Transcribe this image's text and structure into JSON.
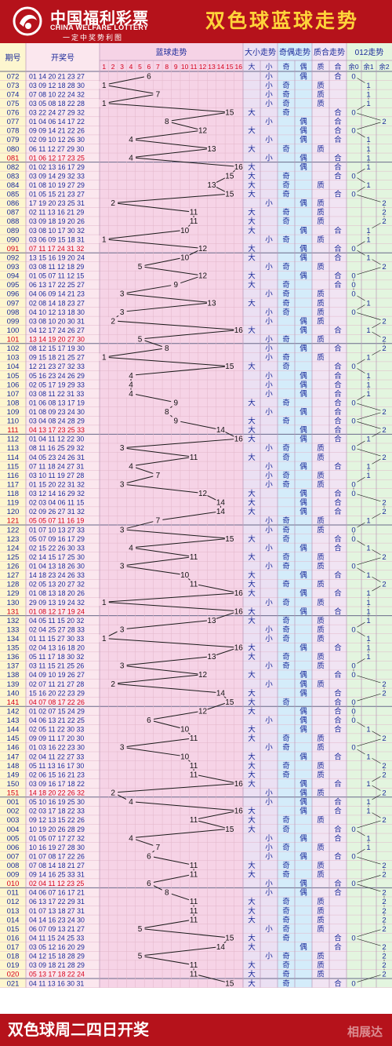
{
  "header": {
    "logo_cn": "中国福利彩票",
    "logo_en": "CHINA WELFARE LOTTERY",
    "logo_sub": "一定中奖势利图",
    "title": "双色球蓝球走势"
  },
  "footer": {
    "text": "双色球周二四日开奖",
    "watermark": "相展达"
  },
  "columns": {
    "period": "期号",
    "numbers": "开奖号",
    "blue_trend": "蓝球走势",
    "big_small": "大小走势",
    "odd_even": "奇偶走势",
    "prime_comp": "质合走势",
    "mod3": "012走势",
    "big": "大",
    "small": "小",
    "odd": "奇",
    "even": "偶",
    "prime": "质",
    "composite": "合",
    "r0": "余0",
    "r1": "余1",
    "r2": "余2"
  },
  "colors": {
    "brand_red": "#b5121b",
    "title_yellow": "#ffd43a",
    "period_bg": "#fdf6cf",
    "numbers_bg": "#fbe7ee",
    "trend_bg": "#f6d3e6",
    "bigsmall_bg": "#ebe0f3",
    "oddeven_bg": "#d4ecfa",
    "primecomp_bg": "#f1e4f3",
    "mod3_bg": "#e3f5df",
    "grid": "#e2b6c9",
    "text_blue": "#1b2a9a",
    "red_row": "#d5001b",
    "green_text": "#2b8a2b"
  },
  "chart_data": {
    "type": "table",
    "blue_range": [
      1,
      16
    ],
    "blue_ticks": [
      "1",
      "2",
      "3",
      "4",
      "5",
      "6",
      "7",
      "8",
      "9",
      "10",
      "11",
      "12",
      "13",
      "14",
      "15",
      "16"
    ],
    "rows": [
      {
        "p": "072",
        "n": "01 14 20 21 23 27",
        "b": 6
      },
      {
        "p": "073",
        "n": "03 09 12 18 28 30",
        "b": 1
      },
      {
        "p": "074",
        "n": "07 08 10 22 24 32",
        "b": 7
      },
      {
        "p": "075",
        "n": "03 05 08 18 22 28",
        "b": 1
      },
      {
        "p": "076",
        "n": "03 22 24 27 29 32",
        "b": 15
      },
      {
        "p": "077",
        "n": "01 04 06 14 17 22",
        "b": 8
      },
      {
        "p": "078",
        "n": "09 09 14 21 22 26",
        "b": 12
      },
      {
        "p": "079",
        "n": "02 09 10 12 26 30",
        "b": 4
      },
      {
        "p": "080",
        "n": "06 11 12 27 29 30",
        "b": 13
      },
      {
        "p": "081",
        "n": "01 06 12 17 23 25",
        "b": 4
      },
      {
        "p": "082",
        "n": "01 02 13 16 17 29",
        "b": 16
      },
      {
        "p": "083",
        "n": "03 09 14 29 32 33",
        "b": 15
      },
      {
        "p": "084",
        "n": "01 08 10 19 27 29",
        "b": 13
      },
      {
        "p": "085",
        "n": "01 05 15 21 23 27",
        "b": 15
      },
      {
        "p": "086",
        "n": "17 19 20 23 25 31",
        "b": 2
      },
      {
        "p": "087",
        "n": "02 11 13 16 21 29",
        "b": 11
      },
      {
        "p": "088",
        "n": "03 09 18 19 20 26",
        "b": 11
      },
      {
        "p": "089",
        "n": "03 08 10 17 30 32",
        "b": 10
      },
      {
        "p": "090",
        "n": "03 06 09 15 18 31",
        "b": 1
      },
      {
        "p": "091",
        "n": "07 11 17 24 31 32",
        "b": 12
      },
      {
        "p": "092",
        "n": "13 15 16 19 20 24",
        "b": 10
      },
      {
        "p": "093",
        "n": "03 08 11 12 18 29",
        "b": 5
      },
      {
        "p": "094",
        "n": "01 05 07 11 12 15",
        "b": 12
      },
      {
        "p": "095",
        "n": "06 13 17 22 25 27",
        "b": 9
      },
      {
        "p": "096",
        "n": "04 06 09 14 21 23",
        "b": 3
      },
      {
        "p": "097",
        "n": "02 08 14 18 23 27",
        "b": 13
      },
      {
        "p": "098",
        "n": "04 10 12 13 18 30",
        "b": 3
      },
      {
        "p": "099",
        "n": "03 08 10 20 30 31",
        "b": 2
      },
      {
        "p": "100",
        "n": "04 12 17 24 26 27",
        "b": 16
      },
      {
        "p": "101",
        "n": "13 14 19 20 27 30",
        "b": 5
      },
      {
        "p": "102",
        "n": "08 12 15 17 19 30",
        "b": 8
      },
      {
        "p": "103",
        "n": "09 15 18 21 25 27",
        "b": 1
      },
      {
        "p": "104",
        "n": "12 21 23 27 32 33",
        "b": 15
      },
      {
        "p": "105",
        "n": "05 16 23 24 26 29",
        "b": 4
      },
      {
        "p": "106",
        "n": "02 05 17 19 29 33",
        "b": 4
      },
      {
        "p": "107",
        "n": "03 08 11 22 31 33",
        "b": 4
      },
      {
        "p": "108",
        "n": "01 06 08 13 17 19",
        "b": 9
      },
      {
        "p": "109",
        "n": "01 08 09 23 24 30",
        "b": 8
      },
      {
        "p": "110",
        "n": "03 04 08 24 28 29",
        "b": 9
      },
      {
        "p": "111",
        "n": "04 13 17 23 25 33",
        "b": 14
      },
      {
        "p": "112",
        "n": "01 04 11 12 22 30",
        "b": 16
      },
      {
        "p": "113",
        "n": "08 11 16 25 29 32",
        "b": 3
      },
      {
        "p": "114",
        "n": "04 05 23 24 26 31",
        "b": 11
      },
      {
        "p": "115",
        "n": "07 11 18 24 27 31",
        "b": 4
      },
      {
        "p": "116",
        "n": "03 10 11 19 27 28",
        "b": 7
      },
      {
        "p": "117",
        "n": "01 15 20 22 31 32",
        "b": 3
      },
      {
        "p": "118",
        "n": "03 12 14 16 29 32",
        "b": 12
      },
      {
        "p": "119",
        "n": "02 03 04 06 11 15",
        "b": 14
      },
      {
        "p": "120",
        "n": "02 09 26 27 31 32",
        "b": 14
      },
      {
        "p": "121",
        "n": "05 05 07 11 16 19",
        "b": 7
      },
      {
        "p": "122",
        "n": "01 07 10 13 27 33",
        "b": 3
      },
      {
        "p": "123",
        "n": "05 07 09 16 17 29",
        "b": 15
      },
      {
        "p": "124",
        "n": "02 15 22 26 30 33",
        "b": 4
      },
      {
        "p": "125",
        "n": "02 14 15 17 25 30",
        "b": 11
      },
      {
        "p": "126",
        "n": "01 04 13 18 26 30",
        "b": 3
      },
      {
        "p": "127",
        "n": "14 18 23 24 26 33",
        "b": 10
      },
      {
        "p": "128",
        "n": "02 05 13 20 27 32",
        "b": 11
      },
      {
        "p": "129",
        "n": "01 08 13 18 20 26",
        "b": 16
      },
      {
        "p": "130",
        "n": "29 09 13 19 24 32",
        "b": 1
      },
      {
        "p": "131",
        "n": "01 08 12 17 19 24",
        "b": 16
      },
      {
        "p": "132",
        "n": "04 05 11 15 20 32",
        "b": 13
      },
      {
        "p": "133",
        "n": "02 04 25 27 28 33",
        "b": 3
      },
      {
        "p": "134",
        "n": "01 11 15 27 30 33",
        "b": 1
      },
      {
        "p": "135",
        "n": "02 04 13 16 18 20",
        "b": 16
      },
      {
        "p": "136",
        "n": "05 11 17 18 30 32",
        "b": 13
      },
      {
        "p": "137",
        "n": "03 11 15 21 25 26",
        "b": 3
      },
      {
        "p": "138",
        "n": "04 09 10 19 26 27",
        "b": 12
      },
      {
        "p": "139",
        "n": "02 07 11 21 27 28",
        "b": 2
      },
      {
        "p": "140",
        "n": "15 16 20 22 23 29",
        "b": 14
      },
      {
        "p": "141",
        "n": "04 07 08 17 22 26",
        "b": 15
      },
      {
        "p": "142",
        "n": "01 02 07 15 24 29",
        "b": 12
      },
      {
        "p": "143",
        "n": "04 06 13 21 22 25",
        "b": 6
      },
      {
        "p": "144",
        "n": "02 05 11 22 30 33",
        "b": 10
      },
      {
        "p": "145",
        "n": "09 09 11 17 20 30",
        "b": 11
      },
      {
        "p": "146",
        "n": "01 03 16 22 23 30",
        "b": 3
      },
      {
        "p": "147",
        "n": "02 04 11 22 27 33",
        "b": 10
      },
      {
        "p": "148",
        "n": "05 11 13 16 17 30",
        "b": 11
      },
      {
        "p": "149",
        "n": "02 06 15 16 21 23",
        "b": 11
      },
      {
        "p": "150",
        "n": "03 09 16 17 18 22",
        "b": 16
      },
      {
        "p": "151",
        "n": "14 18 20 22 26 32",
        "b": 2
      },
      {
        "p": "001",
        "n": "05 10 16 19 25 30",
        "b": 4
      },
      {
        "p": "002",
        "n": "02 03 17 18 22 33",
        "b": 16
      },
      {
        "p": "003",
        "n": "09 12 13 15 22 26",
        "b": 11
      },
      {
        "p": "004",
        "n": "10 19 20 26 28 29",
        "b": 15
      },
      {
        "p": "005",
        "n": "01 05 07 17 27 32",
        "b": 4
      },
      {
        "p": "006",
        "n": "10 16 19 27 28 30",
        "b": 7
      },
      {
        "p": "007",
        "n": "01 07 08 17 22 26",
        "b": 6
      },
      {
        "p": "008",
        "n": "07 08 14 18 21 27",
        "b": 11
      },
      {
        "p": "009",
        "n": "09 14 16 25 33 31",
        "b": 11
      },
      {
        "p": "010",
        "n": "02 04 11 12 23 25",
        "b": 6
      },
      {
        "p": "011",
        "n": "04 06 07 16 17 21",
        "b": 8
      },
      {
        "p": "012",
        "n": "06 13 17 22 29 31",
        "b": 11
      },
      {
        "p": "013",
        "n": "01 07 13 18 27 31",
        "b": 11
      },
      {
        "p": "014",
        "n": "04 14 16 23 24 30",
        "b": 11
      },
      {
        "p": "015",
        "n": "06 07 09 13 21 27",
        "b": 5
      },
      {
        "p": "016",
        "n": "04 11 15 24 25 33",
        "b": 15
      },
      {
        "p": "017",
        "n": "03 05 12 16 20 29",
        "b": 14
      },
      {
        "p": "018",
        "n": "04 12 15 18 28 29",
        "b": 5
      },
      {
        "p": "019",
        "n": "03 09 18 21 28 29",
        "b": 11
      },
      {
        "p": "020",
        "n": "05 13 17 18 22 24",
        "b": 11
      },
      {
        "p": "021",
        "n": "04 11 13 16 30 31",
        "b": 15
      }
    ]
  }
}
